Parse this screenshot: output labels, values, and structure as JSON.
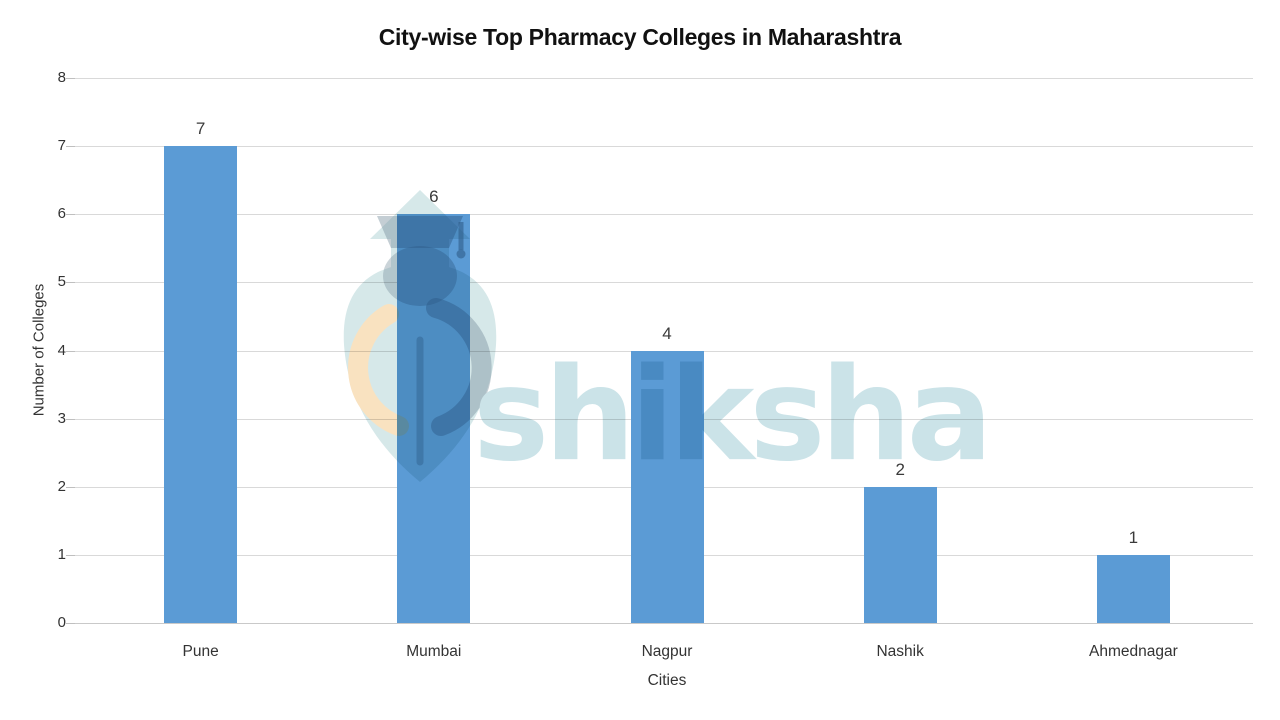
{
  "chart_data": {
    "type": "bar",
    "title": "City-wise Top Pharmacy Colleges in Maharashtra",
    "categories": [
      "Pune",
      "Mumbai",
      "Nagpur",
      "Nashik",
      "Ahmednagar"
    ],
    "values": [
      7,
      6,
      4,
      2,
      1
    ],
    "data_labels": [
      "7",
      "6",
      "4",
      "2",
      "1"
    ],
    "xlabel": "Cities",
    "ylabel": "Number of Colleges",
    "ylim": [
      0,
      8
    ],
    "ytick_step": 1,
    "ytick_labels": [
      "0",
      "1",
      "2",
      "3",
      "4",
      "5",
      "6",
      "7",
      "8"
    ],
    "grid": true,
    "legend": "none",
    "bar_color": "#5b9bd5",
    "gridline_color": "#d9d9d9",
    "axis_label_color": "#333333",
    "title_color": "#111111"
  },
  "watermark": {
    "text": "shiksha",
    "logo": "shiksha-pen-nib-graduation-cap-arrow-logo",
    "text_color": "#cbe3e8",
    "logo_teal": "#d6e8e9",
    "logo_gray": "#7c93a0",
    "logo_peach": "#f9e2c0"
  }
}
